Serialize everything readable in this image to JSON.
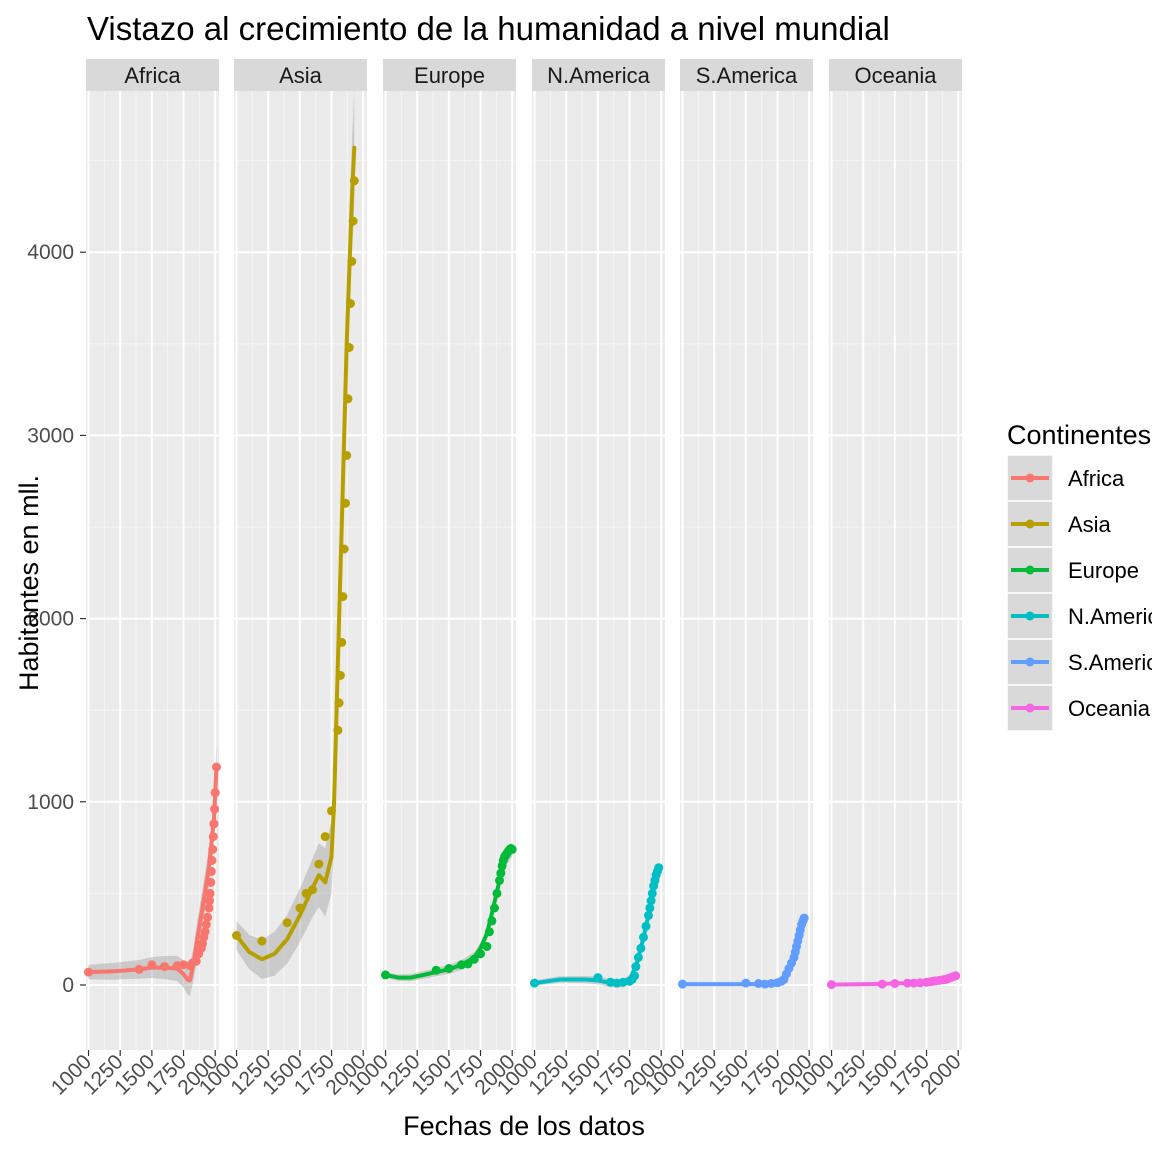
{
  "chart_data": {
    "type": "line",
    "title": "Vistazo al crecimiento de la humanidad a nivel mundial",
    "xlabel": "Fechas de los datos",
    "ylabel": "Habitantes en mll.",
    "xlim": [
      980,
      2030
    ],
    "ylim": [
      -355,
      4880
    ],
    "x_ticks": [
      "1000",
      "1250",
      "1500",
      "1750",
      "2000"
    ],
    "x_tick_values": [
      1000,
      1250,
      1500,
      1750,
      2000
    ],
    "y_ticks": [
      "0",
      "1000",
      "2000",
      "3000",
      "4000"
    ],
    "y_tick_values": [
      0,
      1000,
      2000,
      3000,
      4000
    ],
    "grid": true,
    "legend": {
      "title": "Continentes",
      "position": "right"
    },
    "smooth_band": true,
    "facets": [
      {
        "name": "Africa",
        "color": "#F8766D",
        "points": [
          [
            1000,
            70
          ],
          [
            1400,
            85
          ],
          [
            1500,
            110
          ],
          [
            1600,
            100
          ],
          [
            1700,
            105
          ],
          [
            1750,
            110
          ],
          [
            1800,
            105
          ],
          [
            1820,
            120
          ],
          [
            1850,
            130
          ],
          [
            1870,
            170
          ],
          [
            1890,
            200
          ],
          [
            1900,
            225
          ],
          [
            1910,
            260
          ],
          [
            1920,
            290
          ],
          [
            1930,
            330
          ],
          [
            1940,
            370
          ],
          [
            1950,
            420
          ],
          [
            1955,
            460
          ],
          [
            1960,
            500
          ],
          [
            1965,
            560
          ],
          [
            1970,
            620
          ],
          [
            1975,
            680
          ],
          [
            1980,
            740
          ],
          [
            1985,
            810
          ],
          [
            1990,
            880
          ],
          [
            1995,
            960
          ],
          [
            2000,
            1050
          ],
          [
            2010,
            1190
          ]
        ],
        "smooth": [
          [
            1000,
            70
          ],
          [
            1200,
            75
          ],
          [
            1400,
            85
          ],
          [
            1500,
            95
          ],
          [
            1600,
            95
          ],
          [
            1700,
            90
          ],
          [
            1750,
            60
          ],
          [
            1780,
            30
          ],
          [
            1800,
            25
          ],
          [
            1830,
            120
          ],
          [
            1860,
            260
          ],
          [
            1900,
            420
          ],
          [
            1950,
            640
          ],
          [
            1990,
            900
          ],
          [
            2010,
            1190
          ]
        ],
        "band": [
          40,
          120
        ]
      },
      {
        "name": "Asia",
        "color": "#B79F00",
        "points": [
          [
            1000,
            270
          ],
          [
            1200,
            240
          ],
          [
            1400,
            340
          ],
          [
            1500,
            420
          ],
          [
            1550,
            500
          ],
          [
            1600,
            520
          ],
          [
            1650,
            660
          ],
          [
            1700,
            810
          ],
          [
            1750,
            950
          ],
          [
            1800,
            1390
          ],
          [
            1810,
            1540
          ],
          [
            1820,
            1690
          ],
          [
            1830,
            1870
          ],
          [
            1840,
            2120
          ],
          [
            1850,
            2380
          ],
          [
            1860,
            2630
          ],
          [
            1870,
            2890
          ],
          [
            1880,
            3200
          ],
          [
            1890,
            3480
          ],
          [
            1900,
            3720
          ],
          [
            1910,
            3950
          ],
          [
            1920,
            4170
          ],
          [
            1930,
            4390
          ]
        ],
        "smooth": [
          [
            1000,
            270
          ],
          [
            1100,
            180
          ],
          [
            1200,
            140
          ],
          [
            1300,
            170
          ],
          [
            1400,
            250
          ],
          [
            1500,
            380
          ],
          [
            1600,
            530
          ],
          [
            1650,
            600
          ],
          [
            1700,
            560
          ],
          [
            1750,
            700
          ],
          [
            1770,
            1000
          ],
          [
            1790,
            1500
          ],
          [
            1810,
            2000
          ],
          [
            1830,
            2500
          ],
          [
            1850,
            3000
          ],
          [
            1870,
            3500
          ],
          [
            1890,
            3900
          ],
          [
            1910,
            4280
          ],
          [
            1930,
            4570
          ]
        ],
        "band": [
          80,
          320
        ]
      },
      {
        "name": "Europe",
        "color": "#00BA38",
        "points": [
          [
            1000,
            55
          ],
          [
            1400,
            80
          ],
          [
            1500,
            90
          ],
          [
            1600,
            110
          ],
          [
            1650,
            115
          ],
          [
            1700,
            140
          ],
          [
            1750,
            170
          ],
          [
            1800,
            210
          ],
          [
            1820,
            290
          ],
          [
            1840,
            350
          ],
          [
            1860,
            420
          ],
          [
            1880,
            500
          ],
          [
            1900,
            570
          ],
          [
            1910,
            610
          ],
          [
            1920,
            650
          ],
          [
            1930,
            680
          ],
          [
            1940,
            700
          ],
          [
            1950,
            710
          ],
          [
            1960,
            720
          ],
          [
            1970,
            730
          ],
          [
            1980,
            740
          ],
          [
            1990,
            745
          ],
          [
            2000,
            740
          ]
        ],
        "smooth": [
          [
            1000,
            55
          ],
          [
            1100,
            40
          ],
          [
            1200,
            40
          ],
          [
            1300,
            55
          ],
          [
            1400,
            70
          ],
          [
            1500,
            85
          ],
          [
            1600,
            110
          ],
          [
            1700,
            150
          ],
          [
            1750,
            200
          ],
          [
            1800,
            280
          ],
          [
            1850,
            420
          ],
          [
            1900,
            570
          ],
          [
            1950,
            690
          ],
          [
            2000,
            740
          ]
        ],
        "band": [
          15,
          40
        ]
      },
      {
        "name": "N.America",
        "color": "#00BFC4",
        "points": [
          [
            1000,
            10
          ],
          [
            1500,
            40
          ],
          [
            1600,
            15
          ],
          [
            1650,
            10
          ],
          [
            1700,
            15
          ],
          [
            1750,
            20
          ],
          [
            1770,
            30
          ],
          [
            1790,
            50
          ],
          [
            1800,
            100
          ],
          [
            1820,
            150
          ],
          [
            1840,
            200
          ],
          [
            1860,
            260
          ],
          [
            1880,
            320
          ],
          [
            1900,
            380
          ],
          [
            1910,
            420
          ],
          [
            1920,
            460
          ],
          [
            1930,
            500
          ],
          [
            1940,
            540
          ],
          [
            1950,
            570
          ],
          [
            1960,
            600
          ],
          [
            1970,
            620
          ],
          [
            1980,
            640
          ]
        ],
        "smooth": [
          [
            1000,
            10
          ],
          [
            1100,
            20
          ],
          [
            1200,
            30
          ],
          [
            1300,
            30
          ],
          [
            1400,
            30
          ],
          [
            1500,
            25
          ],
          [
            1600,
            10
          ],
          [
            1700,
            10
          ],
          [
            1750,
            30
          ],
          [
            1800,
            100
          ],
          [
            1850,
            230
          ],
          [
            1900,
            380
          ],
          [
            1950,
            560
          ],
          [
            1980,
            640
          ]
        ],
        "band": [
          15,
          30
        ]
      },
      {
        "name": "S.America",
        "color": "#619CFF",
        "points": [
          [
            1000,
            5
          ],
          [
            1500,
            10
          ],
          [
            1600,
            8
          ],
          [
            1650,
            5
          ],
          [
            1700,
            8
          ],
          [
            1750,
            12
          ],
          [
            1780,
            20
          ],
          [
            1800,
            30
          ],
          [
            1820,
            60
          ],
          [
            1840,
            90
          ],
          [
            1860,
            120
          ],
          [
            1880,
            150
          ],
          [
            1890,
            180
          ],
          [
            1900,
            210
          ],
          [
            1910,
            240
          ],
          [
            1920,
            270
          ],
          [
            1930,
            300
          ],
          [
            1940,
            330
          ],
          [
            1950,
            350
          ],
          [
            1960,
            365
          ]
        ],
        "smooth": [
          [
            1000,
            5
          ],
          [
            1200,
            5
          ],
          [
            1400,
            5
          ],
          [
            1600,
            5
          ],
          [
            1700,
            8
          ],
          [
            1750,
            15
          ],
          [
            1800,
            40
          ],
          [
            1850,
            110
          ],
          [
            1900,
            210
          ],
          [
            1960,
            365
          ]
        ],
        "band": [
          8,
          15
        ]
      },
      {
        "name": "Oceania",
        "color": "#F564E3",
        "points": [
          [
            1000,
            2
          ],
          [
            1400,
            5
          ],
          [
            1500,
            8
          ],
          [
            1600,
            10
          ],
          [
            1650,
            10
          ],
          [
            1700,
            12
          ],
          [
            1750,
            15
          ],
          [
            1780,
            18
          ],
          [
            1800,
            20
          ],
          [
            1820,
            22
          ],
          [
            1850,
            25
          ],
          [
            1880,
            28
          ],
          [
            1900,
            30
          ],
          [
            1920,
            35
          ],
          [
            1940,
            40
          ],
          [
            1960,
            45
          ],
          [
            1980,
            50
          ]
        ],
        "smooth": [
          [
            1000,
            2
          ],
          [
            1200,
            4
          ],
          [
            1400,
            6
          ],
          [
            1600,
            10
          ],
          [
            1800,
            20
          ],
          [
            1900,
            30
          ],
          [
            1980,
            50
          ]
        ],
        "band": [
          3,
          8
        ]
      }
    ]
  }
}
